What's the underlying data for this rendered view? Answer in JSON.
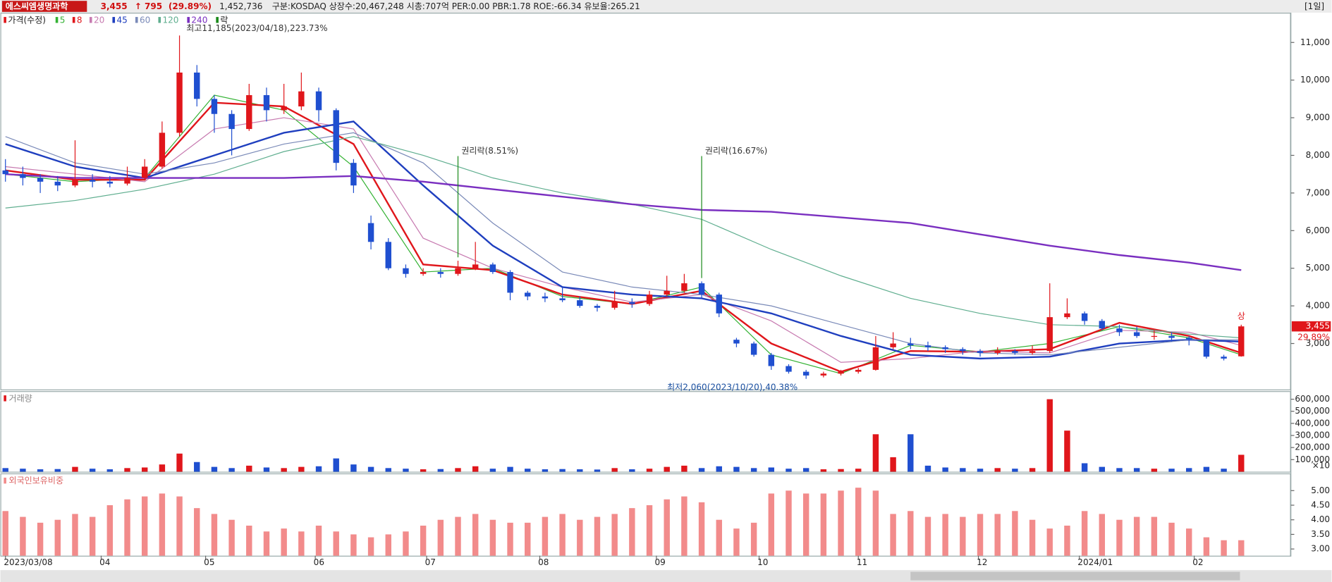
{
  "header": {
    "name": "에스씨엠생명과학",
    "price": "3,455",
    "change": "↑ 795",
    "change_pct": "(29.89%)",
    "volume": "1,452,736",
    "info": "구분:KOSDAQ 상장수:20,467,248 시총:707억 PER:0.00 PBR:1.78 ROE:-66.34 유보율:265.21",
    "period": "[1일]"
  },
  "chart_data": {
    "type": "candlestick",
    "legend_title": "가격(수정)",
    "ex_rights_legend": "락",
    "ohlc": [
      [
        7600,
        7900,
        7300,
        7500
      ],
      [
        7500,
        7700,
        7200,
        7400
      ],
      [
        7400,
        7500,
        7000,
        7300
      ],
      [
        7300,
        7450,
        7050,
        7200
      ],
      [
        7200,
        8400,
        7150,
        7350
      ],
      [
        7350,
        7500,
        7150,
        7300
      ],
      [
        7300,
        7450,
        7150,
        7250
      ],
      [
        7250,
        7700,
        7200,
        7400
      ],
      [
        7400,
        7900,
        7350,
        7700
      ],
      [
        7700,
        8900,
        7650,
        8600
      ],
      [
        8600,
        11185,
        8500,
        10200
      ],
      [
        10200,
        10400,
        9300,
        9500
      ],
      [
        9500,
        9600,
        8600,
        9100
      ],
      [
        9100,
        9200,
        8000,
        8700
      ],
      [
        8700,
        9900,
        8650,
        9600
      ],
      [
        9600,
        9800,
        8900,
        9200
      ],
      [
        9200,
        9900,
        9100,
        9300
      ],
      [
        9300,
        10200,
        9200,
        9700
      ],
      [
        9700,
        9800,
        8900,
        9200
      ],
      [
        9200,
        9250,
        7600,
        7800
      ],
      [
        7800,
        7900,
        7000,
        7200
      ],
      [
        6200,
        6400,
        5500,
        5700
      ],
      [
        5700,
        5800,
        4950,
        5000
      ],
      [
        5000,
        5100,
        4750,
        4850
      ],
      [
        4850,
        5000,
        4800,
        4900
      ],
      [
        4900,
        5000,
        4750,
        4850
      ],
      [
        4850,
        5200,
        4800,
        5000
      ],
      [
        5000,
        5700,
        4950,
        5100
      ],
      [
        5100,
        5150,
        4850,
        4900
      ],
      [
        4900,
        4950,
        4150,
        4350
      ],
      [
        4350,
        4400,
        4150,
        4250
      ],
      [
        4250,
        4350,
        4100,
        4200
      ],
      [
        4200,
        4500,
        4100,
        4150
      ],
      [
        4150,
        4250,
        3950,
        4000
      ],
      [
        4000,
        4050,
        3850,
        3950
      ],
      [
        3950,
        4400,
        3900,
        4100
      ],
      [
        4100,
        4200,
        3950,
        4050
      ],
      [
        4050,
        4400,
        4000,
        4300
      ],
      [
        4300,
        4800,
        4250,
        4400
      ],
      [
        4400,
        4850,
        4350,
        4600
      ],
      [
        4600,
        4650,
        4200,
        4300
      ],
      [
        4300,
        4350,
        3700,
        3800
      ],
      [
        3100,
        3150,
        2900,
        3000
      ],
      [
        3000,
        3050,
        2650,
        2700
      ],
      [
        2700,
        2750,
        2300,
        2400
      ],
      [
        2400,
        2450,
        2200,
        2250
      ],
      [
        2250,
        2300,
        2060,
        2150
      ],
      [
        2150,
        2250,
        2100,
        2200
      ],
      [
        2200,
        2300,
        2150,
        2250
      ],
      [
        2250,
        2350,
        2200,
        2300
      ],
      [
        2300,
        3200,
        2280,
        2900
      ],
      [
        2900,
        3300,
        2850,
        3000
      ],
      [
        3000,
        3150,
        2850,
        2950
      ],
      [
        2950,
        3050,
        2800,
        2900
      ],
      [
        2900,
        2950,
        2750,
        2850
      ],
      [
        2850,
        2900,
        2700,
        2800
      ],
      [
        2800,
        2850,
        2650,
        2750
      ],
      [
        2750,
        2900,
        2700,
        2800
      ],
      [
        2800,
        2850,
        2700,
        2750
      ],
      [
        2750,
        2950,
        2700,
        2800
      ],
      [
        2800,
        4600,
        2750,
        3700
      ],
      [
        3700,
        4200,
        3650,
        3800
      ],
      [
        3800,
        3850,
        3500,
        3600
      ],
      [
        3600,
        3650,
        3350,
        3400
      ],
      [
        3400,
        3500,
        3200,
        3300
      ],
      [
        3300,
        3450,
        3150,
        3200
      ],
      [
        3200,
        3350,
        3100,
        3200
      ],
      [
        3200,
        3300,
        3050,
        3150
      ],
      [
        3150,
        3200,
        2950,
        3100
      ],
      [
        3100,
        3100,
        2600,
        2650
      ],
      [
        2650,
        2700,
        2550,
        2600
      ],
      [
        2660,
        3500,
        2650,
        3455
      ]
    ],
    "up_color": "#e0161b",
    "down_color": "#1f4fd0",
    "ylim": [
      1780,
      11790
    ],
    "yticks": [
      {
        "value": 3000,
        "label": "3,000"
      },
      {
        "value": 4000,
        "label": "4,000"
      },
      {
        "value": 5000,
        "label": "5,000"
      },
      {
        "value": 6000,
        "label": "6,000"
      },
      {
        "value": 7000,
        "label": "7,000"
      },
      {
        "value": 8000,
        "label": "8,000"
      },
      {
        "value": 9000,
        "label": "9,000"
      },
      {
        "value": 10000,
        "label": "10,000"
      },
      {
        "value": 11000,
        "label": "11,000"
      }
    ],
    "ma_x": [
      0,
      4,
      8,
      12,
      16,
      20,
      24,
      28,
      32,
      36,
      40,
      44,
      48,
      52,
      56,
      60,
      64,
      68,
      71
    ],
    "series": [
      {
        "name": "5",
        "color": "#33b233",
        "width": 1,
        "values": [
          7500,
          7300,
          7400,
          9600,
          9200,
          7700,
          4900,
          5000,
          4250,
          4050,
          4500,
          2700,
          2200,
          2950,
          2780,
          3000,
          3450,
          3150,
          2700
        ]
      },
      {
        "name": "8",
        "color": "#e0161b",
        "width": 2,
        "values": [
          7600,
          7350,
          7350,
          9400,
          9300,
          8300,
          5100,
          4950,
          4300,
          4050,
          4400,
          3000,
          2250,
          2800,
          2780,
          2850,
          3550,
          3200,
          2750
        ]
      },
      {
        "name": "20",
        "color": "#c77ab0",
        "width": 1,
        "values": [
          7700,
          7500,
          7300,
          8700,
          9000,
          8700,
          5800,
          5000,
          4500,
          4100,
          4300,
          3600,
          2500,
          2600,
          2800,
          2750,
          3350,
          3300,
          2950
        ]
      },
      {
        "name": "45",
        "color": "#1f3fbf",
        "width": 2,
        "values": [
          8300,
          7700,
          7400,
          8000,
          8600,
          8900,
          7200,
          5600,
          4500,
          4300,
          4200,
          3800,
          3200,
          2700,
          2600,
          2650,
          3000,
          3100,
          3050
        ]
      },
      {
        "name": "60",
        "color": "#7a8ab8",
        "width": 1,
        "values": [
          8500,
          7800,
          7500,
          7800,
          8300,
          8600,
          7800,
          6200,
          4900,
          4500,
          4300,
          4000,
          3500,
          3000,
          2750,
          2700,
          2900,
          3100,
          3100
        ]
      },
      {
        "name": "120",
        "color": "#5fae8f",
        "width": 1,
        "values": [
          6600,
          6800,
          7100,
          7500,
          8100,
          8500,
          8000,
          7400,
          7000,
          6700,
          6300,
          5500,
          4800,
          4200,
          3800,
          3500,
          3450,
          3250,
          3150
        ]
      },
      {
        "name": "240",
        "color": "#7a2fc0",
        "width": 2,
        "values": [
          7500,
          7400,
          7400,
          7400,
          7400,
          7450,
          7300,
          7100,
          6900,
          6700,
          6550,
          6500,
          6350,
          6200,
          5900,
          5600,
          5350,
          5150,
          4950
        ]
      }
    ],
    "annotations": [
      {
        "text": "최고11,185(2023/04/18),223.73%",
        "index": 10
      },
      {
        "text": "최저2,060(2023/10/20),40.38%",
        "index": 46
      },
      {
        "text": "권리락(8.51%)",
        "index": 26
      },
      {
        "text": "권리락(16.67%)",
        "index": 40
      }
    ],
    "last_pct": "29.89%",
    "limit_up": "상",
    "xlabels": [
      {
        "index": 0,
        "label": "2023/03/08"
      },
      {
        "index": 5.5,
        "label": "04"
      },
      {
        "index": 11.5,
        "label": "05"
      },
      {
        "index": 17.8,
        "label": "06"
      },
      {
        "index": 24.2,
        "label": "07"
      },
      {
        "index": 30.7,
        "label": "08"
      },
      {
        "index": 37.4,
        "label": "09"
      },
      {
        "index": 43.3,
        "label": "10"
      },
      {
        "index": 49,
        "label": "11"
      },
      {
        "index": 55.9,
        "label": "12"
      },
      {
        "index": 61.7,
        "label": "2024/01"
      },
      {
        "index": 68.3,
        "label": "02"
      }
    ],
    "volume": {
      "title": "거래량",
      "unit": "×10",
      "values": [
        30000,
        25000,
        20000,
        22000,
        40000,
        25000,
        20000,
        30000,
        35000,
        60000,
        150000,
        80000,
        40000,
        30000,
        50000,
        35000,
        30000,
        40000,
        45000,
        110000,
        60000,
        40000,
        30000,
        25000,
        20000,
        22000,
        30000,
        45000,
        25000,
        40000,
        25000,
        20000,
        22000,
        20000,
        18000,
        30000,
        20000,
        25000,
        40000,
        50000,
        30000,
        45000,
        40000,
        30000,
        35000,
        25000,
        30000,
        20000,
        22000,
        25000,
        310000,
        120000,
        310000,
        50000,
        35000,
        30000,
        25000,
        30000,
        25000,
        30000,
        600000,
        340000,
        70000,
        40000,
        30000,
        30000,
        25000,
        25000,
        30000,
        40000,
        25000,
        140000
      ],
      "ylim": [
        0,
        660000
      ],
      "yticks": [
        {
          "value": 100000,
          "label": "100,000"
        },
        {
          "value": 200000,
          "label": "200,000"
        },
        {
          "value": 300000,
          "label": "300,000"
        },
        {
          "value": 400000,
          "label": "400,000"
        },
        {
          "value": 500000,
          "label": "500,000"
        },
        {
          "value": 600000,
          "label": "600,000"
        }
      ]
    },
    "foreign": {
      "title": "외국인보유비중",
      "color": "#f28b8b",
      "values": [
        4.3,
        4.1,
        3.9,
        4.0,
        4.2,
        4.1,
        4.5,
        4.7,
        4.8,
        4.9,
        4.8,
        4.4,
        4.2,
        4.0,
        3.8,
        3.6,
        3.7,
        3.6,
        3.8,
        3.6,
        3.5,
        3.4,
        3.5,
        3.6,
        3.8,
        4.0,
        4.1,
        4.2,
        4.0,
        3.9,
        3.9,
        4.1,
        4.2,
        4.0,
        4.1,
        4.2,
        4.4,
        4.5,
        4.7,
        4.8,
        4.6,
        4.0,
        3.7,
        3.9,
        4.9,
        5.0,
        4.9,
        4.9,
        5.0,
        5.1,
        5.0,
        4.2,
        4.3,
        4.1,
        4.2,
        4.1,
        4.2,
        4.2,
        4.3,
        4.0,
        3.7,
        3.8,
        4.3,
        4.2,
        4.0,
        4.1,
        4.1,
        3.9,
        3.7,
        3.4,
        3.3,
        3.3
      ],
      "ylim": [
        2.77,
        5.56
      ],
      "yticks": [
        {
          "value": 3,
          "label": "3.00"
        },
        {
          "value": 3.5,
          "label": "3.50"
        },
        {
          "value": 4,
          "label": "4.00"
        },
        {
          "value": 4.5,
          "label": "4.50"
        },
        {
          "value": 5,
          "label": "5.00"
        }
      ]
    }
  }
}
